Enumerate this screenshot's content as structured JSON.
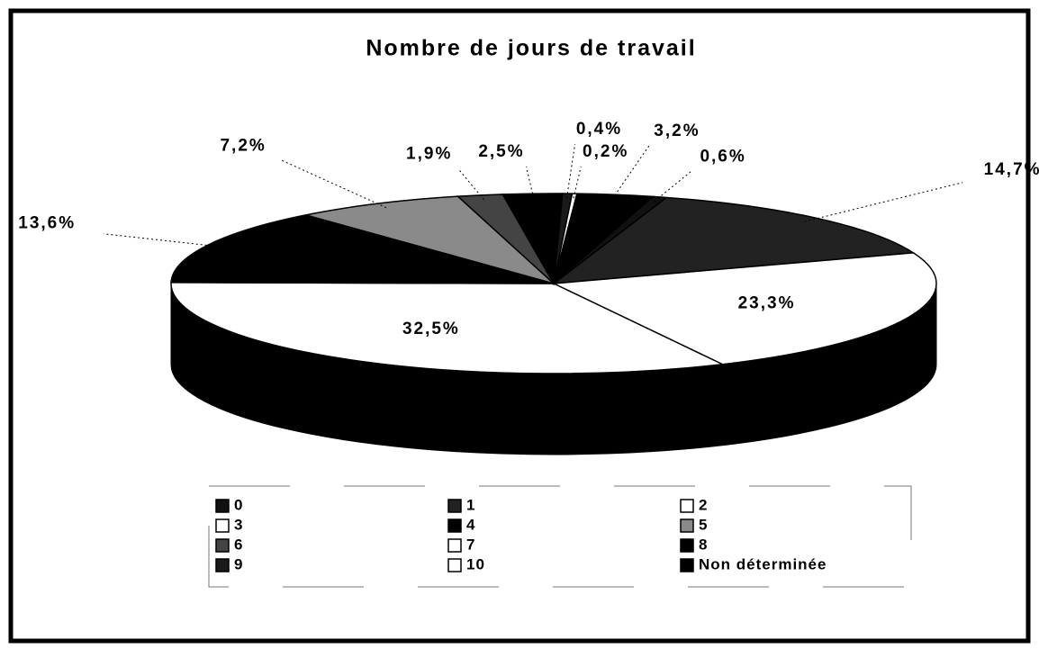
{
  "chart_data": {
    "type": "pie3d",
    "title": "Nombre de jours de travail",
    "categories": [
      "0",
      "1",
      "2",
      "3",
      "4",
      "5",
      "6",
      "7",
      "8",
      "9",
      "10",
      "Non déterminée"
    ],
    "values": [
      0.6,
      14.7,
      23.3,
      32.5,
      13.6,
      7.2,
      1.9,
      0,
      2.5,
      0.4,
      0.2,
      3.2
    ],
    "value_labels": [
      "0,6%",
      "14,7%",
      "23,3%",
      "32,5%",
      "13,6%",
      "7,2%",
      "1,9%",
      null,
      "2,5%",
      "0,4%",
      "0,2%",
      "3,2%"
    ],
    "colors": [
      "#111111",
      "#222222",
      "#ffffff",
      "#ffffff",
      "#000000",
      "#8a8a8a",
      "#444444",
      "#ffffff",
      "#000000",
      "#1a1a1a",
      "#ffffff",
      "#000000"
    ]
  }
}
